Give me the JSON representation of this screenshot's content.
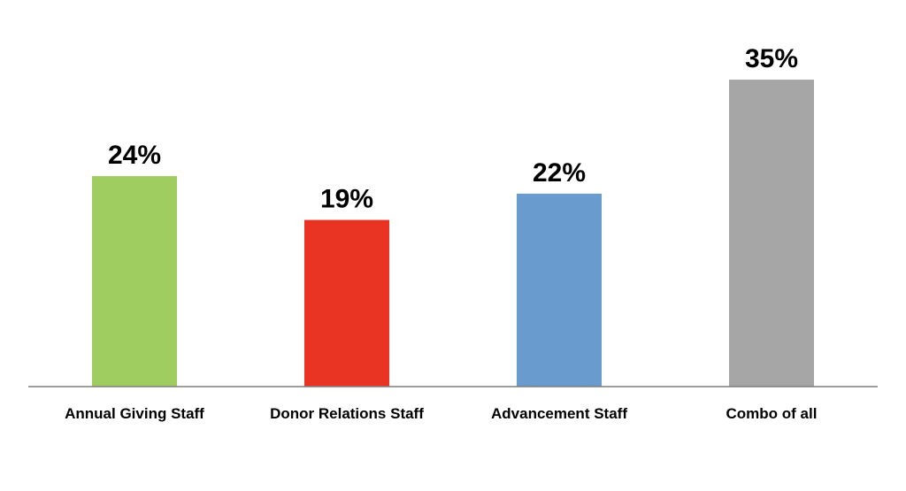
{
  "chart_data": {
    "type": "bar",
    "categories": [
      "Annual Giving Staff",
      "Donor Relations Staff",
      "Advancement Staff",
      "Combo of all"
    ],
    "values": [
      24,
      19,
      22,
      35
    ],
    "data_labels": [
      "24%",
      "19%",
      "22%",
      "35%"
    ],
    "colors": [
      "#a0cd5f",
      "#e93323",
      "#6a9bce",
      "#a6a6a6"
    ],
    "title": "",
    "xlabel": "",
    "ylabel": "",
    "ylim": [
      0,
      40
    ],
    "grid": false,
    "legend": "none",
    "unit": "%"
  }
}
